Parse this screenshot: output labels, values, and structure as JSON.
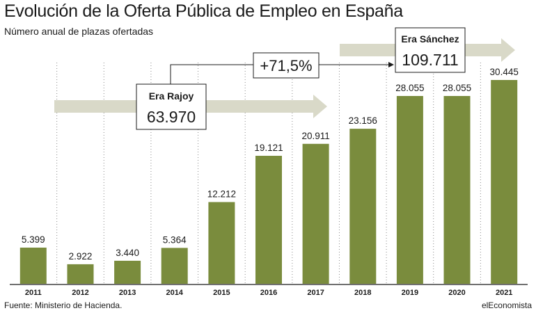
{
  "header": {
    "title": "Evolución de la Oferta Pública de Empleo en España",
    "subtitle": "Número anual de plazas ofertadas"
  },
  "footer": {
    "source": "Fuente: Ministerio de Hacienda.",
    "brand": "elEconomista"
  },
  "annotations": {
    "rajoy_label": "Era Rajoy",
    "rajoy_value": "63.970",
    "sanchez_label": "Era Sánchez",
    "sanchez_value": "109.711",
    "change": "+71,5%"
  },
  "colors": {
    "bar": "#7a8c3d",
    "arrow": "#d9d9c8",
    "grid": "#888888",
    "text": "#1a1a1a"
  },
  "chart_data": {
    "type": "bar",
    "title": "Evolución de la Oferta Pública de Empleo en España",
    "subtitle": "Número anual de plazas ofertadas",
    "categories": [
      "2011",
      "2012",
      "2013",
      "2014",
      "2015",
      "2016",
      "2017",
      "2018",
      "2019",
      "2020",
      "2021"
    ],
    "values": [
      5399,
      2922,
      3440,
      5364,
      12212,
      19121,
      20911,
      23156,
      28055,
      28055,
      30445
    ],
    "value_labels": [
      "5.399",
      "2.922",
      "3.440",
      "5.364",
      "12.212",
      "19.121",
      "20.911",
      "23.156",
      "28.055",
      "28.055",
      "30.445"
    ],
    "ylim": [
      0,
      30445
    ],
    "grid": "vertical dotted",
    "legend": "none"
  }
}
